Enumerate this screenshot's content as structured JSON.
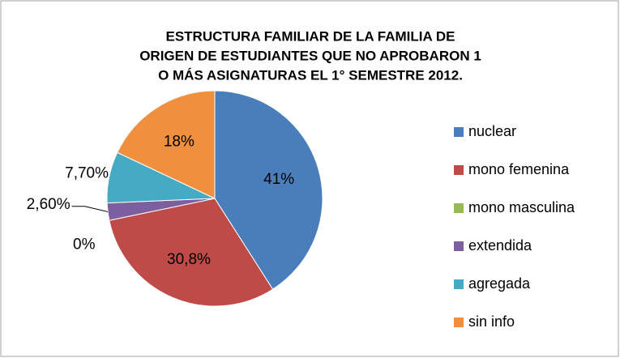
{
  "chart_data": {
    "type": "pie",
    "title": [
      "ESTRUCTURA FAMILIAR DE LA FAMILIA DE",
      "ORIGEN DE ESTUDIANTES QUE NO APROBARON 1",
      "O MÁS ASIGNATURAS EL 1° SEMESTRE 2012."
    ],
    "categories": [
      "nuclear",
      "mono femenina",
      "mono masculina",
      "extendida",
      "agregada",
      "sin info"
    ],
    "values": [
      41,
      30.8,
      0,
      2.6,
      7.7,
      18
    ],
    "value_labels": [
      "41%",
      "30,8%",
      "0%",
      "2,60%",
      "7,70%",
      "18%"
    ],
    "colors": [
      "#4a7ebb",
      "#be4b48",
      "#98b954",
      "#7d5fa0",
      "#46aac5",
      "#f0903f"
    ],
    "legend": "right"
  }
}
